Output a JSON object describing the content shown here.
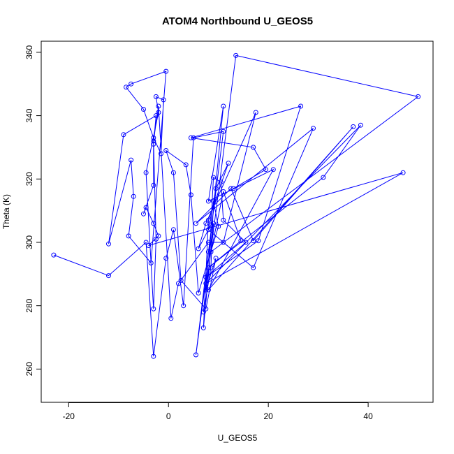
{
  "chart_data": {
    "type": "line",
    "title": "ATOM4 Northbound U_GEOS5",
    "xlabel": "U_GEOS5",
    "ylabel": "Theta (K)",
    "xlim": [
      -25.5,
      53.0
    ],
    "ylim": [
      249.5,
      363.5
    ],
    "xticks": [
      -20,
      0,
      20,
      40
    ],
    "yticks": [
      260,
      280,
      300,
      320,
      340,
      360
    ],
    "grid": false,
    "legend": "none",
    "colors": {
      "series": "#0000ff",
      "axes": "#000000",
      "background": "#ffffff"
    },
    "series": [
      {
        "marker": "open-circle",
        "points": [
          [
            -23,
            296
          ],
          [
            -12,
            289.5
          ],
          [
            -4.5,
            300
          ],
          [
            -3,
            264
          ],
          [
            -0.5,
            295
          ],
          [
            1,
            304
          ],
          [
            3,
            280
          ],
          [
            5,
            333
          ],
          [
            11,
            335
          ],
          [
            8,
            297
          ],
          [
            5.5,
            264.5
          ],
          [
            9,
            306
          ],
          [
            7,
            273
          ],
          [
            8,
            307
          ],
          [
            12,
            325
          ],
          [
            9.5,
            317
          ],
          [
            8,
            304
          ],
          [
            17,
            292
          ],
          [
            29,
            336
          ],
          [
            5.5,
            306
          ],
          [
            12.5,
            317
          ],
          [
            17,
            300.5
          ],
          [
            37,
            336.5
          ],
          [
            8,
            285
          ],
          [
            21,
            323
          ],
          [
            8,
            313
          ],
          [
            11,
            343
          ],
          [
            7,
            278
          ],
          [
            8.5,
            292
          ],
          [
            9,
            313
          ],
          [
            10,
            305
          ],
          [
            6,
            284
          ],
          [
            4.5,
            315
          ],
          [
            3.5,
            324.5
          ],
          [
            -0.5,
            329
          ],
          [
            1,
            322
          ],
          [
            2.5,
            288
          ],
          [
            7.5,
            279
          ],
          [
            9.5,
            295
          ],
          [
            7.5,
            285
          ],
          [
            13.5,
            359
          ],
          [
            50,
            346
          ],
          [
            8.5,
            297
          ],
          [
            11,
            316
          ],
          [
            14.5,
            300.5
          ],
          [
            8,
            292
          ],
          [
            31,
            320.5
          ],
          [
            38.5,
            337
          ],
          [
            7.5,
            287
          ],
          [
            47,
            322
          ],
          [
            -4,
            299
          ],
          [
            -2,
            302
          ],
          [
            -3,
            306
          ],
          [
            -4.5,
            311
          ],
          [
            -5,
            309
          ],
          [
            -3,
            318
          ],
          [
            -3,
            331
          ],
          [
            -2.5,
            340
          ],
          [
            -9,
            334
          ],
          [
            -12,
            299.5
          ],
          [
            -7.5,
            326
          ],
          [
            -7,
            314.5
          ],
          [
            -8,
            302
          ],
          [
            -3.5,
            293.5
          ],
          [
            -0.5,
            354
          ],
          [
            -7.5,
            350
          ],
          [
            -8.5,
            349
          ],
          [
            -5,
            342
          ],
          [
            -3,
            333
          ],
          [
            -1.5,
            328
          ],
          [
            -1,
            345
          ],
          [
            -2.5,
            346
          ],
          [
            -2,
            341
          ],
          [
            -4.5,
            322
          ],
          [
            -3,
            279
          ],
          [
            -2.5,
            301
          ],
          [
            -3,
            332
          ],
          [
            -2,
            343
          ],
          [
            0.5,
            276
          ],
          [
            2,
            287
          ],
          [
            8,
            300
          ],
          [
            11,
            300
          ],
          [
            17.5,
            341
          ],
          [
            7.5,
            306
          ],
          [
            6,
            298
          ],
          [
            8.5,
            305.5
          ],
          [
            9,
            320.5
          ],
          [
            10.5,
            319
          ],
          [
            11,
            307
          ],
          [
            15.5,
            300
          ],
          [
            7.5,
            289
          ],
          [
            18,
            300.5
          ],
          [
            26.5,
            343
          ],
          [
            4.5,
            333
          ],
          [
            17,
            330
          ],
          [
            19.5,
            323
          ],
          [
            13,
            317
          ]
        ]
      }
    ]
  }
}
